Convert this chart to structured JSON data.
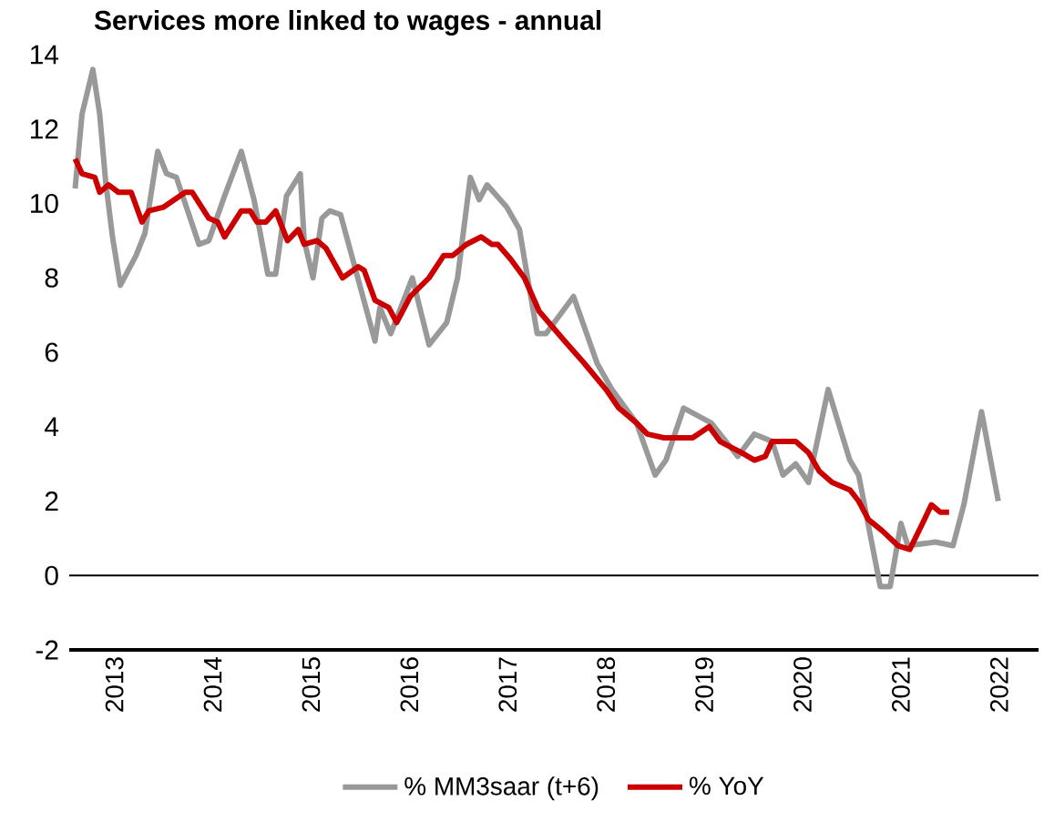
{
  "chart_data": {
    "type": "line",
    "title": "Services more linked to wages - annual",
    "xlim": [
      2012.54,
      2022.4
    ],
    "xticks": [
      2013,
      2014,
      2015,
      2016,
      2017,
      2018,
      2019,
      2020,
      2021,
      2022
    ],
    "ylim": [
      -2,
      14
    ],
    "yticks": [
      -2,
      0,
      2,
      4,
      6,
      8,
      10,
      12,
      14
    ],
    "grid": false,
    "legend": "bottom",
    "marker": "none",
    "line_style": "solid",
    "ref_lines": [
      {
        "axis": "y",
        "value": 0,
        "color": "#000000"
      }
    ],
    "series": [
      {
        "name": "% MM3saar (t+6)",
        "color": "#999999",
        "x": [
          2012.6,
          2012.67,
          2012.78,
          2012.85,
          2012.91,
          2012.98,
          2013.06,
          2013.22,
          2013.31,
          2013.44,
          2013.53,
          2013.63,
          2013.86,
          2013.96,
          2014.12,
          2014.29,
          2014.42,
          2014.56,
          2014.64,
          2014.75,
          2014.89,
          2014.93,
          2015.02,
          2015.11,
          2015.19,
          2015.3,
          2015.65,
          2015.7,
          2015.81,
          2016.03,
          2016.2,
          2016.38,
          2016.49,
          2016.62,
          2016.71,
          2016.79,
          2016.99,
          2017.12,
          2017.17,
          2017.3,
          2017.39,
          2017.67,
          2017.91,
          2018.06,
          2018.31,
          2018.5,
          2018.61,
          2018.79,
          2019.07,
          2019.34,
          2019.51,
          2019.69,
          2019.8,
          2019.93,
          2020.06,
          2020.26,
          2020.48,
          2020.57,
          2020.79,
          2020.89,
          2021.0,
          2021.07,
          2021.35,
          2021.53,
          2021.64,
          2021.82,
          2021.99
        ],
        "values": [
          10.4,
          12.4,
          13.6,
          12.4,
          10.6,
          9.1,
          7.8,
          8.6,
          9.2,
          11.4,
          10.8,
          10.7,
          8.9,
          9.0,
          10.2,
          11.4,
          10.1,
          8.1,
          8.1,
          10.2,
          10.8,
          9.0,
          8.0,
          9.6,
          9.8,
          9.7,
          6.3,
          7.2,
          6.5,
          8.0,
          6.2,
          6.8,
          8.0,
          10.7,
          10.1,
          10.5,
          9.9,
          9.3,
          8.5,
          6.5,
          6.5,
          7.5,
          5.7,
          5.0,
          4.1,
          2.7,
          3.1,
          4.5,
          4.1,
          3.2,
          3.8,
          3.6,
          2.7,
          3.0,
          2.5,
          5.0,
          3.1,
          2.7,
          -0.3,
          -0.3,
          1.4,
          0.8,
          0.9,
          0.8,
          1.9,
          4.4,
          2.0
        ]
      },
      {
        "name": "% YoY",
        "color": "#cc0000",
        "x": [
          2012.6,
          2012.67,
          2012.8,
          2012.85,
          2012.94,
          2013.04,
          2013.17,
          2013.28,
          2013.35,
          2013.5,
          2013.72,
          2013.79,
          2013.96,
          2014.05,
          2014.12,
          2014.29,
          2014.38,
          2014.45,
          2014.54,
          2014.64,
          2014.76,
          2014.87,
          2014.93,
          2015.06,
          2015.15,
          2015.32,
          2015.48,
          2015.54,
          2015.65,
          2015.79,
          2015.87,
          2016.01,
          2016.2,
          2016.35,
          2016.44,
          2016.58,
          2016.73,
          2016.84,
          2016.9,
          2017.03,
          2017.17,
          2017.32,
          2017.58,
          2017.78,
          2018.0,
          2018.13,
          2018.31,
          2018.42,
          2018.59,
          2018.88,
          2019.05,
          2019.16,
          2019.38,
          2019.51,
          2019.62,
          2019.69,
          2019.93,
          2020.06,
          2020.17,
          2020.3,
          2020.48,
          2020.57,
          2020.67,
          2020.81,
          2020.97,
          2021.09,
          2021.22,
          2021.31,
          2021.4,
          2021.49
        ],
        "values": [
          11.2,
          10.8,
          10.7,
          10.3,
          10.5,
          10.3,
          10.3,
          9.5,
          9.8,
          9.9,
          10.3,
          10.3,
          9.6,
          9.5,
          9.1,
          9.8,
          9.8,
          9.5,
          9.5,
          9.8,
          9.0,
          9.3,
          8.9,
          9.0,
          8.8,
          8.0,
          8.3,
          8.2,
          7.4,
          7.2,
          6.8,
          7.5,
          8.0,
          8.6,
          8.6,
          8.9,
          9.1,
          8.9,
          8.9,
          8.5,
          8.0,
          7.1,
          6.3,
          5.7,
          5.0,
          4.5,
          4.1,
          3.8,
          3.7,
          3.7,
          4.0,
          3.6,
          3.3,
          3.1,
          3.2,
          3.6,
          3.6,
          3.3,
          2.8,
          2.5,
          2.3,
          2.0,
          1.5,
          1.2,
          0.8,
          0.7,
          1.4,
          1.9,
          1.7,
          1.7
        ]
      }
    ]
  }
}
